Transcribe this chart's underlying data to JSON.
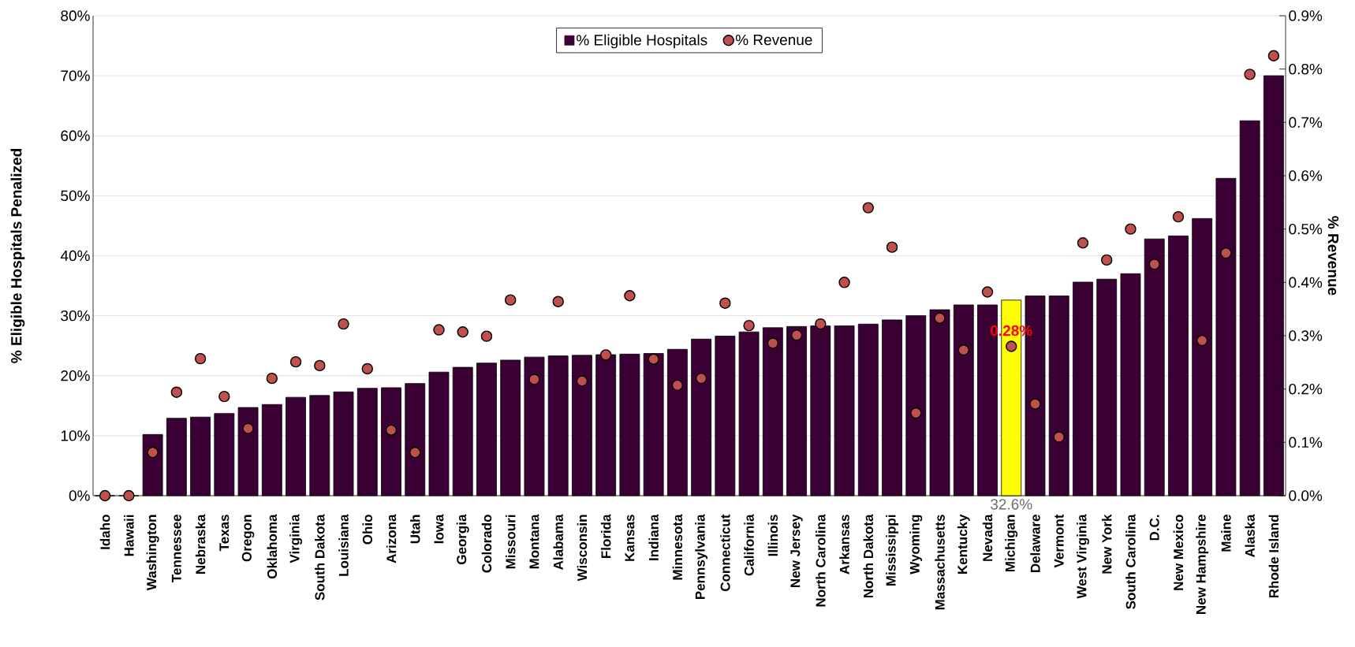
{
  "chart_data": {
    "type": "bar",
    "ylabel": "% Eligible Hospitals Penalized",
    "y2label": "% Revenue",
    "categories": [
      "Idaho",
      "Hawaii",
      "Washington",
      "Tennessee",
      "Nebraska",
      "Texas",
      "Oregon",
      "Oklahoma",
      "Virginia",
      "South Dakota",
      "Louisiana",
      "Ohio",
      "Arizona",
      "Utah",
      "Iowa",
      "Georgia",
      "Colorado",
      "Missouri",
      "Montana",
      "Alabama",
      "Wisconsin",
      "Florida",
      "Kansas",
      "Indiana",
      "Minnesota",
      "Pennsylvania",
      "Connecticut",
      "California",
      "Illinois",
      "New Jersey",
      "North Carolina",
      "Arkansas",
      "North Dakota",
      "Mississippi",
      "Wyoming",
      "Massachusetts",
      "Kentucky",
      "Nevada",
      "Michigan",
      "Delaware",
      "Vermont",
      "West Virginia",
      "New York",
      "South Carolina",
      "D.C.",
      "New Mexico",
      "New Hampshire",
      "Maine",
      "Alaska",
      "Rhode Island"
    ],
    "series": [
      {
        "name": "% Eligible Hospitals",
        "type": "bar",
        "color": "#3b0033",
        "colors": [
          "#3b0033",
          "#3b0033",
          "#3b0033",
          "#3b0033",
          "#3b0033",
          "#3b0033",
          "#3b0033",
          "#3b0033",
          "#3b0033",
          "#3b0033",
          "#3b0033",
          "#3b0033",
          "#3b0033",
          "#3b0033",
          "#3b0033",
          "#3b0033",
          "#3b0033",
          "#3b0033",
          "#3b0033",
          "#3b0033",
          "#3b0033",
          "#3b0033",
          "#3b0033",
          "#3b0033",
          "#3b0033",
          "#3b0033",
          "#3b0033",
          "#3b0033",
          "#3b0033",
          "#3b0033",
          "#3b0033",
          "#3b0033",
          "#3b0033",
          "#3b0033",
          "#3b0033",
          "#3b0033",
          "#3b0033",
          "#3b0033",
          "#ffff00",
          "#3b0033",
          "#3b0033",
          "#3b0033",
          "#3b0033",
          "#3b0033",
          "#3b0033",
          "#3b0033",
          "#3b0033",
          "#3b0033",
          "#3b0033",
          "#3b0033"
        ],
        "values": [
          0,
          0,
          10.2,
          12.9,
          13.1,
          13.7,
          14.7,
          15.2,
          16.4,
          16.7,
          17.3,
          17.9,
          18.0,
          18.7,
          20.6,
          21.4,
          22.1,
          22.6,
          23.1,
          23.3,
          23.4,
          23.5,
          23.6,
          23.7,
          24.4,
          26.1,
          26.6,
          27.3,
          28.0,
          28.2,
          28.3,
          28.3,
          28.6,
          29.3,
          30.0,
          31.0,
          31.8,
          31.8,
          32.6,
          33.3,
          33.3,
          35.6,
          36.1,
          37.0,
          42.8,
          43.3,
          46.2,
          52.9,
          62.5,
          70.0
        ],
        "value_labels": [
          null,
          null,
          null,
          null,
          null,
          null,
          null,
          null,
          null,
          null,
          null,
          null,
          null,
          null,
          null,
          null,
          null,
          null,
          null,
          null,
          null,
          null,
          null,
          null,
          null,
          null,
          null,
          null,
          null,
          null,
          null,
          null,
          null,
          null,
          null,
          null,
          null,
          null,
          "32.6%",
          null,
          null,
          null,
          null,
          null,
          null,
          null,
          null,
          null,
          null,
          null
        ]
      },
      {
        "name": "% Revenue",
        "type": "scatter",
        "axis": "y2",
        "color": "#c0504d",
        "marker": "circle",
        "values": [
          0,
          0,
          0.081,
          0.194,
          0.257,
          0.186,
          0.126,
          0.22,
          0.251,
          0.244,
          0.322,
          0.238,
          0.123,
          0.081,
          0.311,
          0.307,
          0.299,
          0.367,
          0.218,
          0.364,
          0.215,
          0.264,
          0.375,
          0.256,
          0.207,
          0.22,
          0.361,
          0.319,
          0.286,
          0.301,
          0.322,
          0.4,
          0.54,
          0.466,
          0.155,
          0.333,
          0.273,
          0.382,
          0.28,
          0.172,
          0.11,
          0.474,
          0.442,
          0.5,
          0.434,
          0.523,
          0.291,
          0.455,
          0.79,
          0.825
        ],
        "value_labels": [
          null,
          null,
          null,
          null,
          null,
          null,
          null,
          null,
          null,
          null,
          null,
          null,
          null,
          null,
          null,
          null,
          null,
          null,
          null,
          null,
          null,
          null,
          null,
          null,
          null,
          null,
          null,
          null,
          null,
          null,
          null,
          null,
          null,
          null,
          null,
          null,
          null,
          null,
          "0.28%",
          null,
          null,
          null,
          null,
          null,
          null,
          null,
          null,
          null,
          null,
          null
        ]
      }
    ],
    "ylim": [
      0,
      80
    ],
    "yticks": [
      {
        "value": 0,
        "label": "0%"
      },
      {
        "value": 10,
        "label": "10%"
      },
      {
        "value": 20,
        "label": "20%"
      },
      {
        "value": 30,
        "label": "30%"
      },
      {
        "value": 40,
        "label": "40%"
      },
      {
        "value": 50,
        "label": "50%"
      },
      {
        "value": 60,
        "label": "60%"
      },
      {
        "value": 70,
        "label": "70%"
      },
      {
        "value": 80,
        "label": "80%"
      }
    ],
    "y2lim": [
      0,
      0.9
    ],
    "y2ticks": [
      {
        "value": 0,
        "label": "0.0%"
      },
      {
        "value": 0.1,
        "label": "0.1%"
      },
      {
        "value": 0.2,
        "label": "0.2%"
      },
      {
        "value": 0.3,
        "label": "0.3%"
      },
      {
        "value": 0.4,
        "label": "0.4%"
      },
      {
        "value": 0.5,
        "label": "0.5%"
      },
      {
        "value": 0.6,
        "label": "0.6%"
      },
      {
        "value": 0.7,
        "label": "0.7%"
      },
      {
        "value": 0.8,
        "label": "0.8%"
      },
      {
        "value": 0.9,
        "label": "0.9%"
      }
    ],
    "grid": "y",
    "legend": "top"
  }
}
